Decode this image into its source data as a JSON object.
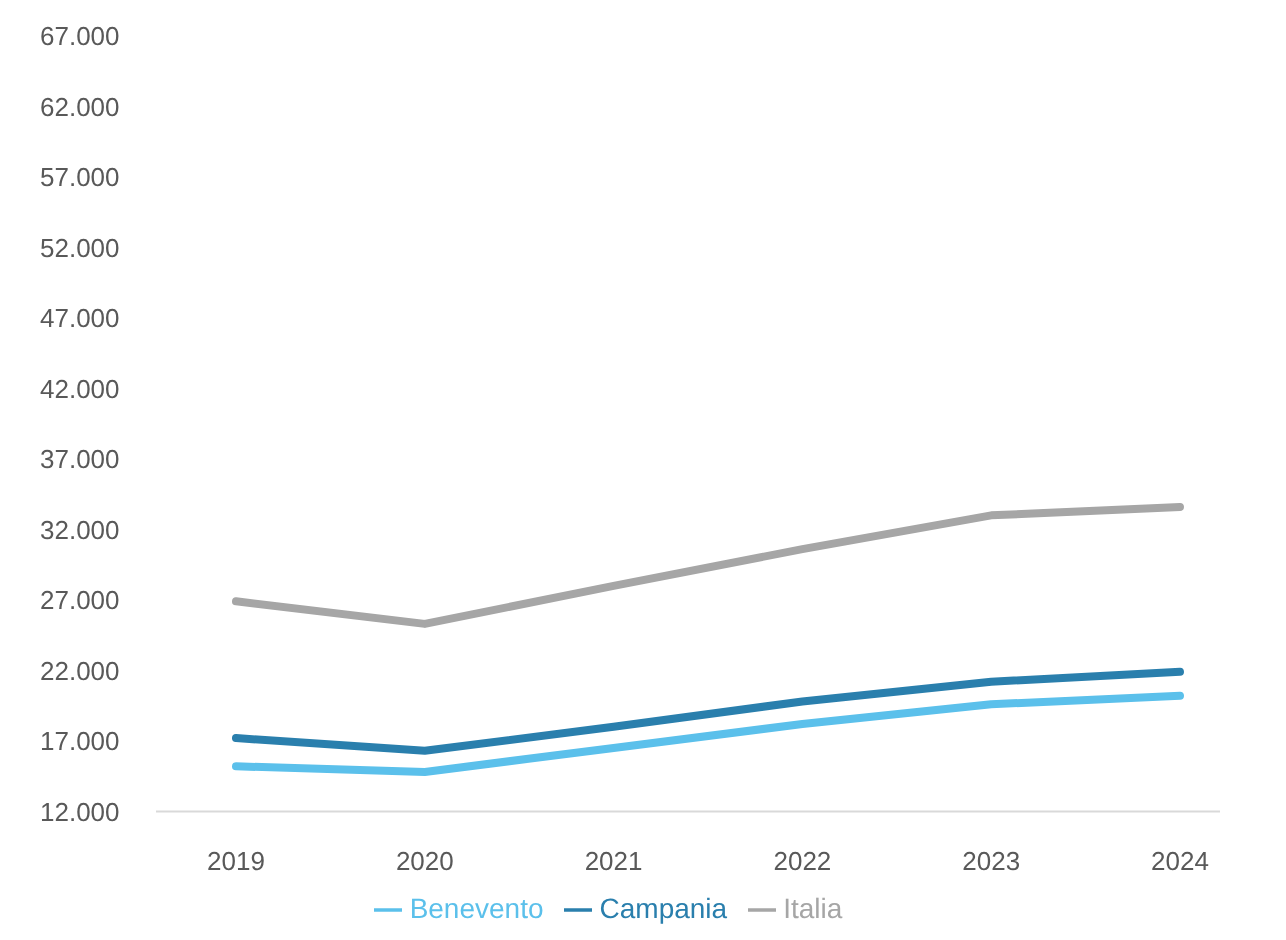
{
  "chart_data": {
    "type": "line",
    "categories": [
      "2019",
      "2020",
      "2021",
      "2022",
      "2023",
      "2024"
    ],
    "series": [
      {
        "name": "Benevento",
        "color": "#5bc0eb",
        "values": [
          15200,
          14800,
          16500,
          18200,
          19600,
          20200
        ]
      },
      {
        "name": "Campania",
        "color": "#2a7fad",
        "values": [
          17200,
          16300,
          18000,
          19800,
          21200,
          21900
        ]
      },
      {
        "name": "Italia",
        "color": "#a6a6a6",
        "values": [
          26900,
          25300,
          28000,
          30600,
          33000,
          33600
        ]
      }
    ],
    "ylim": [
      12000,
      67000
    ],
    "yticks": [
      {
        "value": 12000,
        "label": "12.000"
      },
      {
        "value": 17000,
        "label": "17.000"
      },
      {
        "value": 22000,
        "label": "22.000"
      },
      {
        "value": 27000,
        "label": "27.000"
      },
      {
        "value": 32000,
        "label": "32.000"
      },
      {
        "value": 37000,
        "label": "37.000"
      },
      {
        "value": 42000,
        "label": "42.000"
      },
      {
        "value": 47000,
        "label": "47.000"
      },
      {
        "value": 52000,
        "label": "52.000"
      },
      {
        "value": 57000,
        "label": "57.000"
      },
      {
        "value": 62000,
        "label": "62.000"
      },
      {
        "value": 67000,
        "label": "67.000"
      }
    ],
    "grid": false,
    "legend": "bottom",
    "marker": "none",
    "line_style": "solid"
  }
}
